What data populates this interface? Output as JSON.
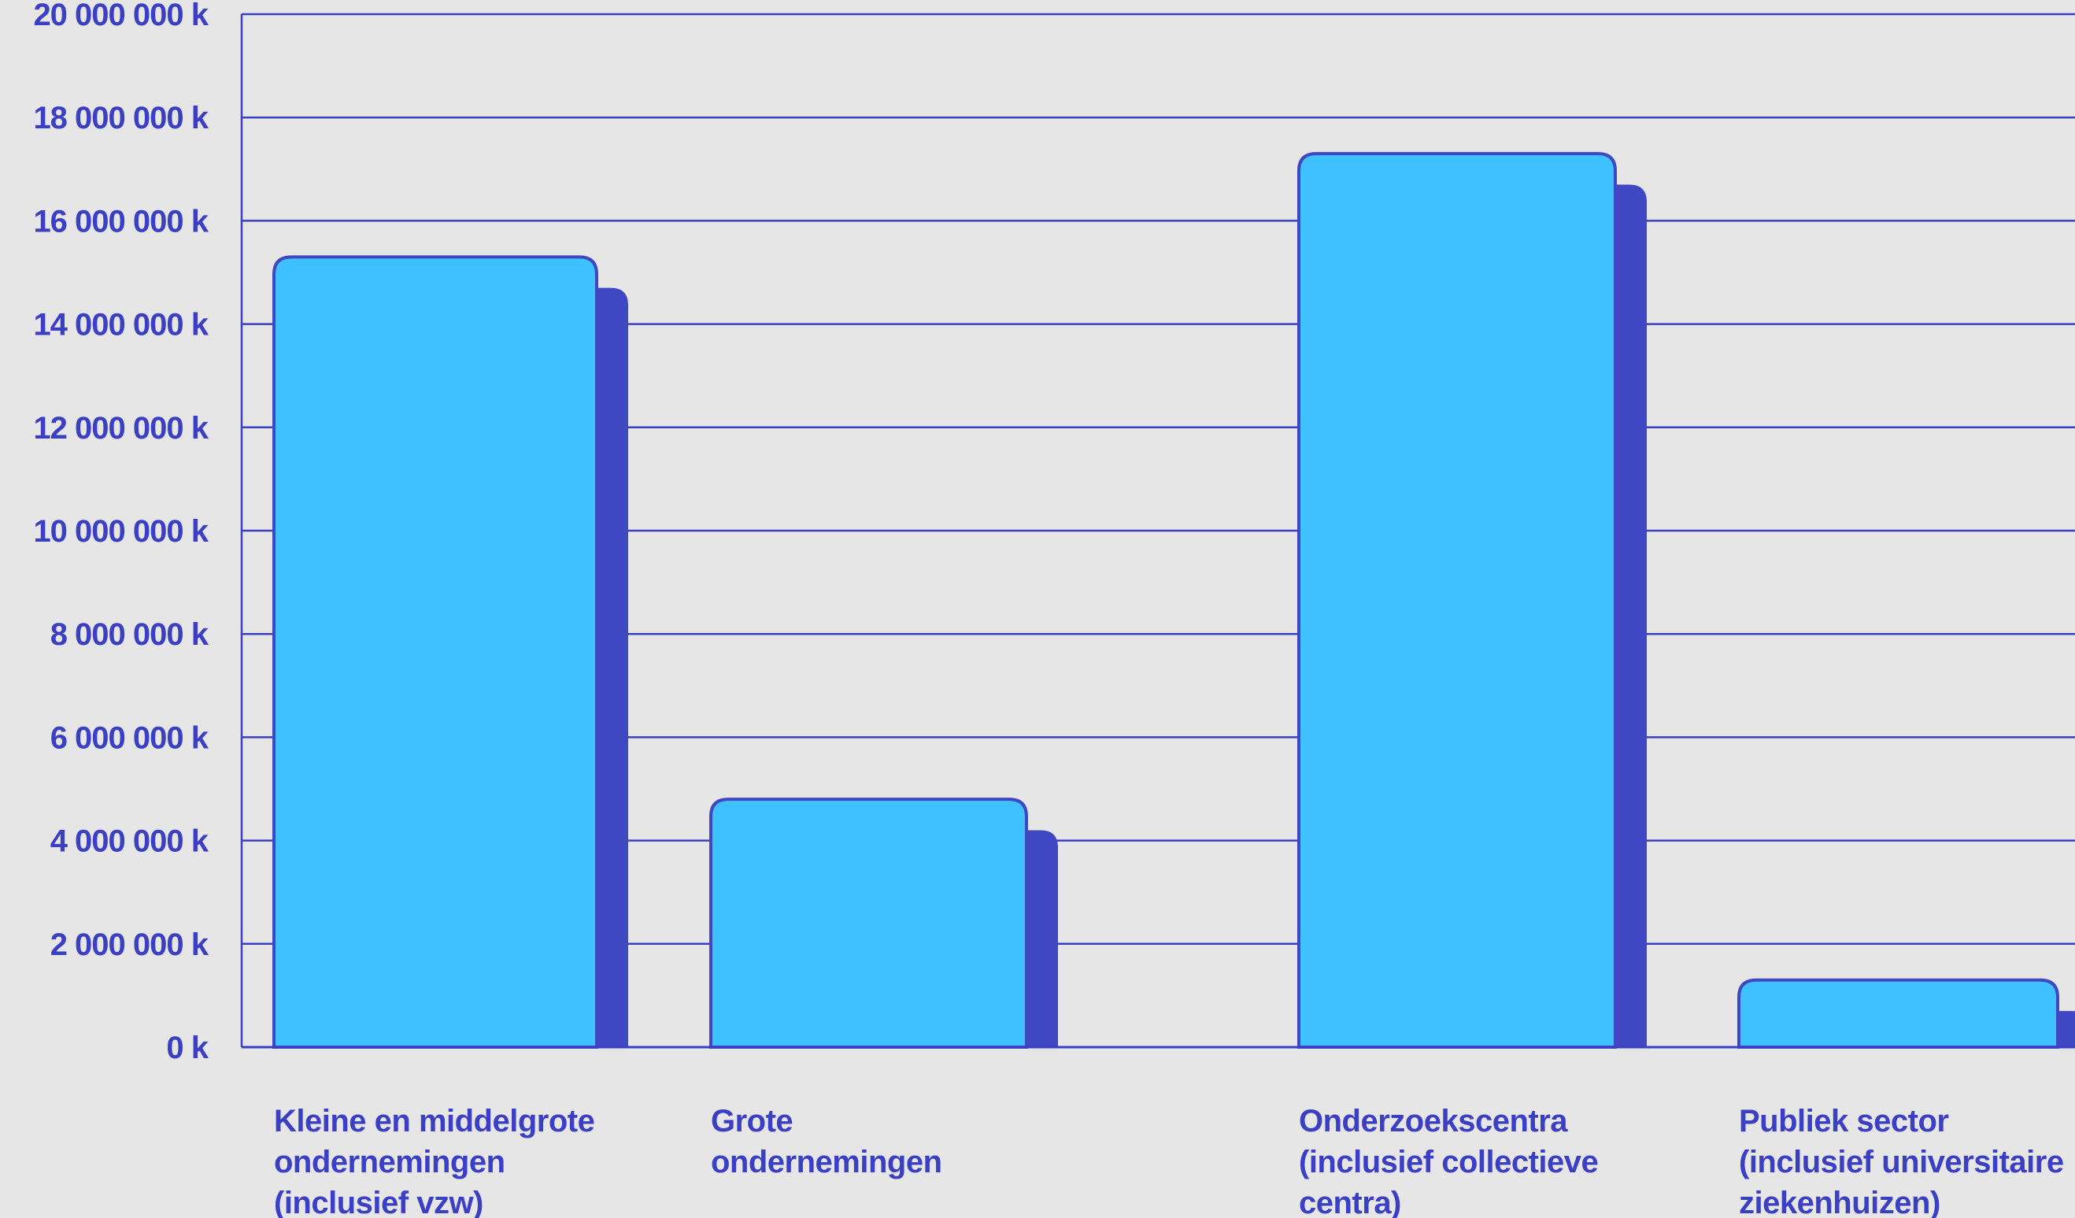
{
  "chart_data": {
    "type": "bar",
    "title": "",
    "xlabel": "",
    "ylabel": "",
    "ylim": [
      0,
      20000000
    ],
    "grid": true,
    "tick_values": [
      0,
      2000000,
      4000000,
      6000000,
      8000000,
      10000000,
      12000000,
      14000000,
      16000000,
      18000000,
      20000000
    ],
    "tick_labels": [
      "0 k",
      "2 000 000 k",
      "4 000 000 k",
      "6 000 000 k",
      "8 000 000 k",
      "10 000 000 k",
      "12 000 000 k",
      "14 000 000 k",
      "16 000 000 k",
      "18 000 000 k",
      "20 000 000 k"
    ],
    "categories": [
      "Kleine en middelgrote ondernemingen (inclusief vzw)",
      "Grote ondernemingen",
      "Onderzoekscentra (inclusief collectieve centra)",
      "Publiek sector (inclusief universitaire ziekenhuizen)"
    ],
    "category_label_lines": [
      [
        "Kleine en middelgrote",
        "ondernemingen",
        "(inclusief vzw)"
      ],
      [
        "Grote",
        "ondernemingen"
      ],
      [
        "Onderzoekscentra",
        "(inclusief collectieve",
        "centra)"
      ],
      [
        "Publiek sector",
        "(inclusief universitaire",
        "ziekenhuizen)"
      ]
    ],
    "series": [
      {
        "values": [
          15300000,
          4800000,
          17300000,
          1300000
        ]
      },
      {
        "values": [
          14700000,
          4200000,
          16700000,
          700000
        ]
      }
    ]
  },
  "colors": {
    "background": "#e6e6e7",
    "bar_front": "#40c1ff",
    "bar_back": "#3f47c3",
    "axis_text": "#3b3fc4",
    "grid": "#3b3fc4"
  }
}
